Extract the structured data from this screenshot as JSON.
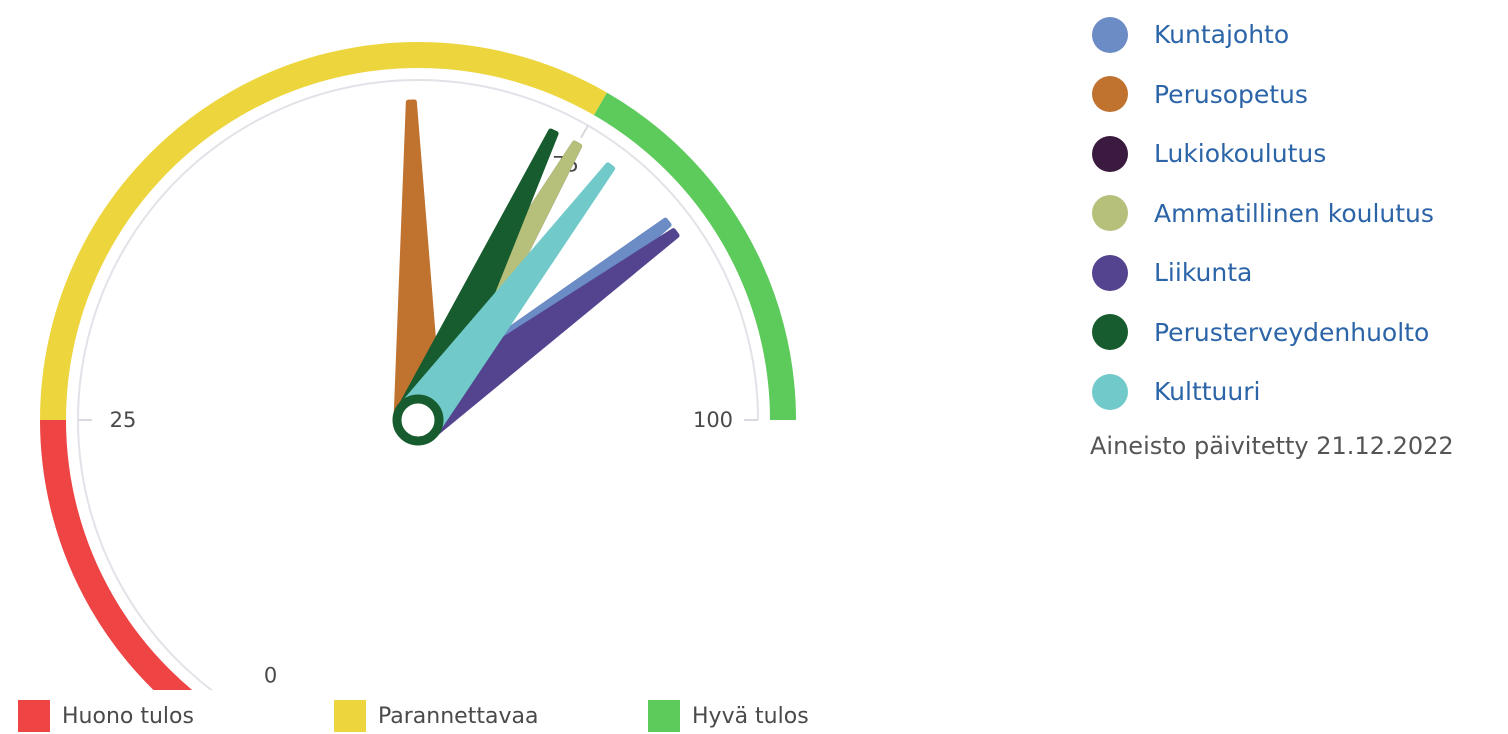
{
  "chart_data": {
    "type": "gauge",
    "min": 0,
    "max": 100,
    "tick_labels": [
      "0",
      "25",
      "75",
      "100"
    ],
    "tick_values": [
      0,
      25,
      75,
      100
    ],
    "bands": [
      {
        "name": "Huono tulos",
        "from": 0,
        "to": 25,
        "color": "#ee4444"
      },
      {
        "name": "Parannettavaa",
        "from": 25,
        "to": 75,
        "color": "#edd53e"
      },
      {
        "name": "Hyvä tulos",
        "from": 75,
        "to": 100,
        "color": "#5ccb5c"
      }
    ],
    "series": [
      {
        "name": "Kuntajohto",
        "value": 84,
        "color": "#6b8cc4"
      },
      {
        "name": "Perusopetus",
        "value": 62,
        "color": "#c0722f"
      },
      {
        "name": "Lukiokoulutus",
        "value": 75,
        "color": "#3a1a3e"
      },
      {
        "name": "Ammatillinen koulutus",
        "value": 75,
        "color": "#b6c07a"
      },
      {
        "name": "Liikunta",
        "value": 85,
        "color": "#54438f"
      },
      {
        "name": "Perusterveydenhuolto",
        "value": 73,
        "color": "#175c2e"
      },
      {
        "name": "Kulttuuri",
        "value": 78,
        "color": "#71c9c9"
      }
    ]
  },
  "updated_text": "Aineisto päivitetty 21.12.2022",
  "colors": {
    "legend_text": "#2c64a8",
    "pivot": "#175c2e",
    "frame_arc": "#e0e0e6"
  }
}
